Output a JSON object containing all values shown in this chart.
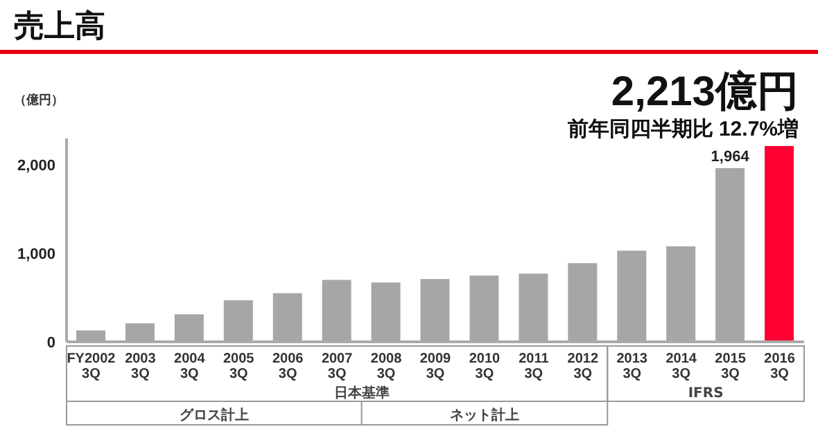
{
  "chart_data": {
    "type": "bar",
    "title": "売上高",
    "ylabel": "（億円）",
    "categories": [
      "FY2002\n3Q",
      "2003\n3Q",
      "2004\n3Q",
      "2005\n3Q",
      "2006\n3Q",
      "2007\n3Q",
      "2008\n3Q",
      "2009\n3Q",
      "2010\n3Q",
      "2011\n3Q",
      "2012\n3Q",
      "2013\n3Q",
      "2014\n3Q",
      "2015\n3Q",
      "2016\n3Q"
    ],
    "values": [
      130,
      210,
      310,
      470,
      550,
      700,
      670,
      710,
      750,
      770,
      890,
      1030,
      1080,
      1964,
      2213
    ],
    "colors": [
      "#a6a6a6",
      "#a6a6a6",
      "#a6a6a6",
      "#a6a6a6",
      "#a6a6a6",
      "#a6a6a6",
      "#a6a6a6",
      "#a6a6a6",
      "#a6a6a6",
      "#a6a6a6",
      "#a6a6a6",
      "#a6a6a6",
      "#a6a6a6",
      "#a6a6a6",
      "#ff0033"
    ],
    "value_labels": [
      null,
      null,
      null,
      null,
      null,
      null,
      null,
      null,
      null,
      null,
      null,
      null,
      null,
      "1,964",
      null
    ],
    "ylim": [
      0,
      2300
    ],
    "yticks": [
      0,
      {
        "value": 1000,
        "label": "1,000"
      },
      {
        "value": 2000,
        "label": "2,000"
      }
    ],
    "grid": false,
    "legend": false,
    "annotations": [
      "2,213億円",
      "前年同四半期比 12.7%増",
      "日本基準",
      "IFRS",
      "グロス計上",
      "ネット計上"
    ]
  }
}
